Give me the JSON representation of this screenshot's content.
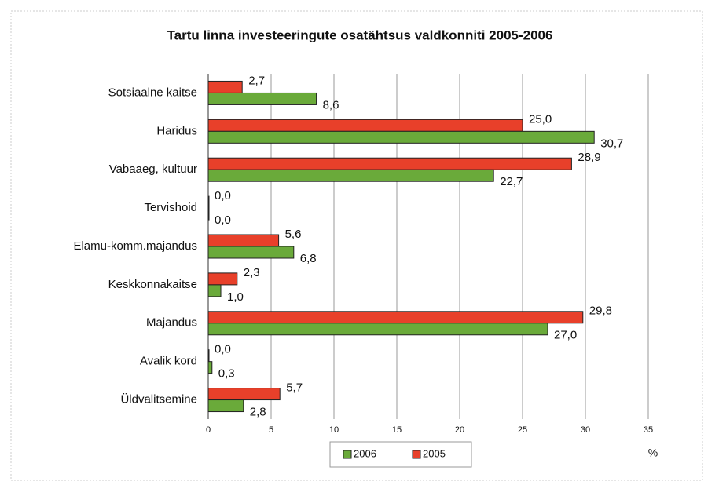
{
  "chart_data": {
    "type": "hbar",
    "title": "Tartu linna investeeringute osatähtsus valdkonniti 2005-2006",
    "categories": [
      "Sotsiaalne kaitse",
      "Haridus",
      "Vabaaeg, kultuur",
      "Tervishoid",
      "Elamu-komm.majandus",
      "Keskkonnakaitse",
      "Majandus",
      "Avalik kord",
      "Üldvalitsemine"
    ],
    "series": [
      {
        "name": "2006",
        "color": "#6aaa3a",
        "values": [
          8.6,
          30.7,
          22.7,
          0.0,
          6.8,
          1.0,
          27.0,
          0.3,
          2.8
        ],
        "value_labels": [
          "8,6",
          "30,7",
          "22,7",
          "0,0",
          "6,8",
          "1,0",
          "27,0",
          "0,3",
          "2,8"
        ]
      },
      {
        "name": "2005",
        "color": "#e8402a",
        "values": [
          2.7,
          25.0,
          28.9,
          0.0,
          5.6,
          2.3,
          29.8,
          0.0,
          5.7
        ],
        "value_labels": [
          "2,7",
          "25,0",
          "28,9",
          "0,0",
          "5,6",
          "2,3",
          "29,8",
          "0,0",
          "5,7"
        ]
      }
    ],
    "xlabel": "%",
    "xlim": [
      0,
      35
    ],
    "xticks": [
      0,
      5,
      10,
      15,
      20,
      25,
      30,
      35
    ],
    "grid": true,
    "legend": "bottom"
  }
}
